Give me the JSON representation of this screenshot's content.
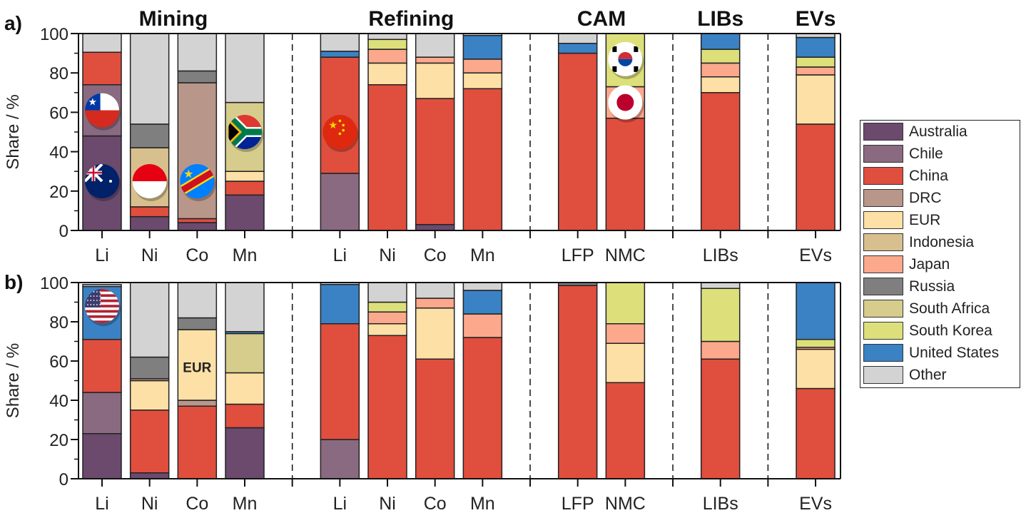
{
  "chart_data": {
    "type": "bar",
    "stacked": true,
    "ylabel": "Share / %",
    "ylim": [
      0,
      100
    ],
    "yticks": [
      "0",
      "20",
      "40",
      "60",
      "80",
      "100"
    ],
    "colors": {
      "Australia": "#6b4a6e",
      "Chile": "#8a6a80",
      "China": "#e04e3e",
      "DRC": "#b8978a",
      "EUR": "#fde0a6",
      "Indonesia": "#d8c08e",
      "Japan": "#fba88c",
      "Russia": "#7f7f7f",
      "South Africa": "#d6cc8c",
      "South Korea": "#dde07a",
      "United States": "#3a82c4",
      "Other": "#d3d3d3"
    },
    "legend": [
      "Australia",
      "Chile",
      "China",
      "DRC",
      "EUR",
      "Indonesia",
      "Japan",
      "Russia",
      "South Africa",
      "South Korea",
      "United States",
      "Other"
    ],
    "legend_position": "right",
    "groups": [
      {
        "title": "Mining",
        "slots": [
          0,
          1,
          2,
          3
        ]
      },
      {
        "title": "Refining",
        "slots": [
          5,
          6,
          7,
          8
        ]
      },
      {
        "title": "CAM",
        "slots": [
          10,
          11
        ]
      },
      {
        "title": "LIBs",
        "slots": [
          13
        ]
      },
      {
        "title": "EVs",
        "slots": [
          15
        ]
      }
    ],
    "separators": [
      4,
      9,
      12,
      14
    ],
    "categories": [
      {
        "label": "Li",
        "slot": 0
      },
      {
        "label": "Ni",
        "slot": 1
      },
      {
        "label": "Co",
        "slot": 2
      },
      {
        "label": "Mn",
        "slot": 3
      },
      {
        "label": "Li",
        "slot": 5
      },
      {
        "label": "Ni",
        "slot": 6
      },
      {
        "label": "Co",
        "slot": 7
      },
      {
        "label": "Mn",
        "slot": 8
      },
      {
        "label": "LFP",
        "slot": 10
      },
      {
        "label": "NMC",
        "slot": 11
      },
      {
        "label": "LIBs",
        "slot": 13
      },
      {
        "label": "EVs",
        "slot": 15
      }
    ],
    "panels": [
      {
        "label": "a)",
        "bars": [
          [
            [
              "Australia",
              48
            ],
            [
              "Chile",
              26
            ],
            [
              "China",
              16.5
            ],
            [
              "Other",
              9.5
            ]
          ],
          [
            [
              "Australia",
              7
            ],
            [
              "China",
              5
            ],
            [
              "Indonesia",
              30
            ],
            [
              "Russia",
              12
            ],
            [
              "Other",
              46
            ]
          ],
          [
            [
              "Australia",
              4
            ],
            [
              "China",
              2
            ],
            [
              "DRC",
              69
            ],
            [
              "Russia",
              6
            ],
            [
              "Other",
              19
            ]
          ],
          [
            [
              "Australia",
              18
            ],
            [
              "China",
              7
            ],
            [
              "EUR",
              5
            ],
            [
              "South Africa",
              35
            ],
            [
              "Other",
              35
            ]
          ],
          [
            [
              "Chile",
              29
            ],
            [
              "China",
              59
            ],
            [
              "United States",
              3
            ],
            [
              "Other",
              9
            ]
          ],
          [
            [
              "China",
              74
            ],
            [
              "EUR",
              11
            ],
            [
              "Japan",
              7
            ],
            [
              "South Korea",
              5
            ],
            [
              "Other",
              3
            ]
          ],
          [
            [
              "Australia",
              3
            ],
            [
              "China",
              64
            ],
            [
              "EUR",
              18
            ],
            [
              "Japan",
              3
            ],
            [
              "Other",
              12
            ]
          ],
          [
            [
              "China",
              72
            ],
            [
              "EUR",
              8
            ],
            [
              "Japan",
              7
            ],
            [
              "United States",
              12
            ],
            [
              "Other",
              1
            ]
          ],
          [
            [
              "China",
              90
            ],
            [
              "United States",
              5
            ],
            [
              "Other",
              5
            ]
          ],
          [
            [
              "China",
              57
            ],
            [
              "Japan",
              16
            ],
            [
              "South Korea",
              27
            ]
          ],
          [
            [
              "China",
              70
            ],
            [
              "EUR",
              8
            ],
            [
              "Japan",
              7
            ],
            [
              "South Korea",
              7
            ],
            [
              "United States",
              8
            ]
          ],
          [
            [
              "China",
              54
            ],
            [
              "EUR",
              25
            ],
            [
              "Japan",
              4
            ],
            [
              "South Korea",
              5
            ],
            [
              "United States",
              10
            ],
            [
              "Other",
              2
            ]
          ]
        ],
        "flags": [
          {
            "country": "Chile",
            "bar": 0,
            "y": 61
          },
          {
            "country": "Australia",
            "bar": 0,
            "y": 25
          },
          {
            "country": "Indonesia",
            "bar": 1,
            "y": 25
          },
          {
            "country": "DRC",
            "bar": 2,
            "y": 25
          },
          {
            "country": "South Africa",
            "bar": 3,
            "y": 50
          },
          {
            "country": "China",
            "bar": 4,
            "y": 50
          },
          {
            "country": "South Korea",
            "bar": 9,
            "y": 87
          },
          {
            "country": "Japan",
            "bar": 9,
            "y": 65
          }
        ],
        "annotations": []
      },
      {
        "label": "b)",
        "bars": [
          [
            [
              "Australia",
              23
            ],
            [
              "Chile",
              21
            ],
            [
              "China",
              27
            ],
            [
              "United States",
              27
            ],
            [
              "Other",
              1
            ]
          ],
          [
            [
              "Australia",
              3
            ],
            [
              "China",
              32
            ],
            [
              "EUR",
              15
            ],
            [
              "DRC",
              1
            ],
            [
              "Russia",
              11
            ],
            [
              "Other",
              38
            ]
          ],
          [
            [
              "China",
              37
            ],
            [
              "DRC",
              3
            ],
            [
              "EUR",
              36
            ],
            [
              "Russia",
              6
            ],
            [
              "Other",
              18
            ]
          ],
          [
            [
              "Australia",
              26
            ],
            [
              "China",
              12
            ],
            [
              "EUR",
              16
            ],
            [
              "South Africa",
              20
            ],
            [
              "United States",
              1
            ],
            [
              "Other",
              25
            ]
          ],
          [
            [
              "Chile",
              20
            ],
            [
              "China",
              59
            ],
            [
              "United States",
              20
            ],
            [
              "Other",
              1
            ]
          ],
          [
            [
              "China",
              73
            ],
            [
              "EUR",
              6
            ],
            [
              "Japan",
              6
            ],
            [
              "South Korea",
              5
            ],
            [
              "Other",
              10
            ]
          ],
          [
            [
              "China",
              61
            ],
            [
              "EUR",
              26
            ],
            [
              "Japan",
              5
            ],
            [
              "Other",
              8
            ]
          ],
          [
            [
              "China",
              72
            ],
            [
              "Japan",
              12
            ],
            [
              "United States",
              12
            ],
            [
              "Other",
              4
            ]
          ],
          [
            [
              "China",
              98.5
            ],
            [
              "Russia",
              1.5
            ]
          ],
          [
            [
              "China",
              49
            ],
            [
              "EUR",
              20
            ],
            [
              "Japan",
              10
            ],
            [
              "South Korea",
              21
            ]
          ],
          [
            [
              "China",
              61
            ],
            [
              "Japan",
              9
            ],
            [
              "South Korea",
              27
            ],
            [
              "Other",
              3
            ]
          ],
          [
            [
              "China",
              46
            ],
            [
              "EUR",
              20
            ],
            [
              "Japan",
              1
            ],
            [
              "South Korea",
              4
            ],
            [
              "United States",
              29
            ]
          ]
        ],
        "flags": [
          {
            "country": "United States",
            "bar": 0,
            "y": 88
          }
        ],
        "annotations": [
          {
            "text": "EUR",
            "bar": 2,
            "y": 57
          }
        ]
      }
    ]
  }
}
